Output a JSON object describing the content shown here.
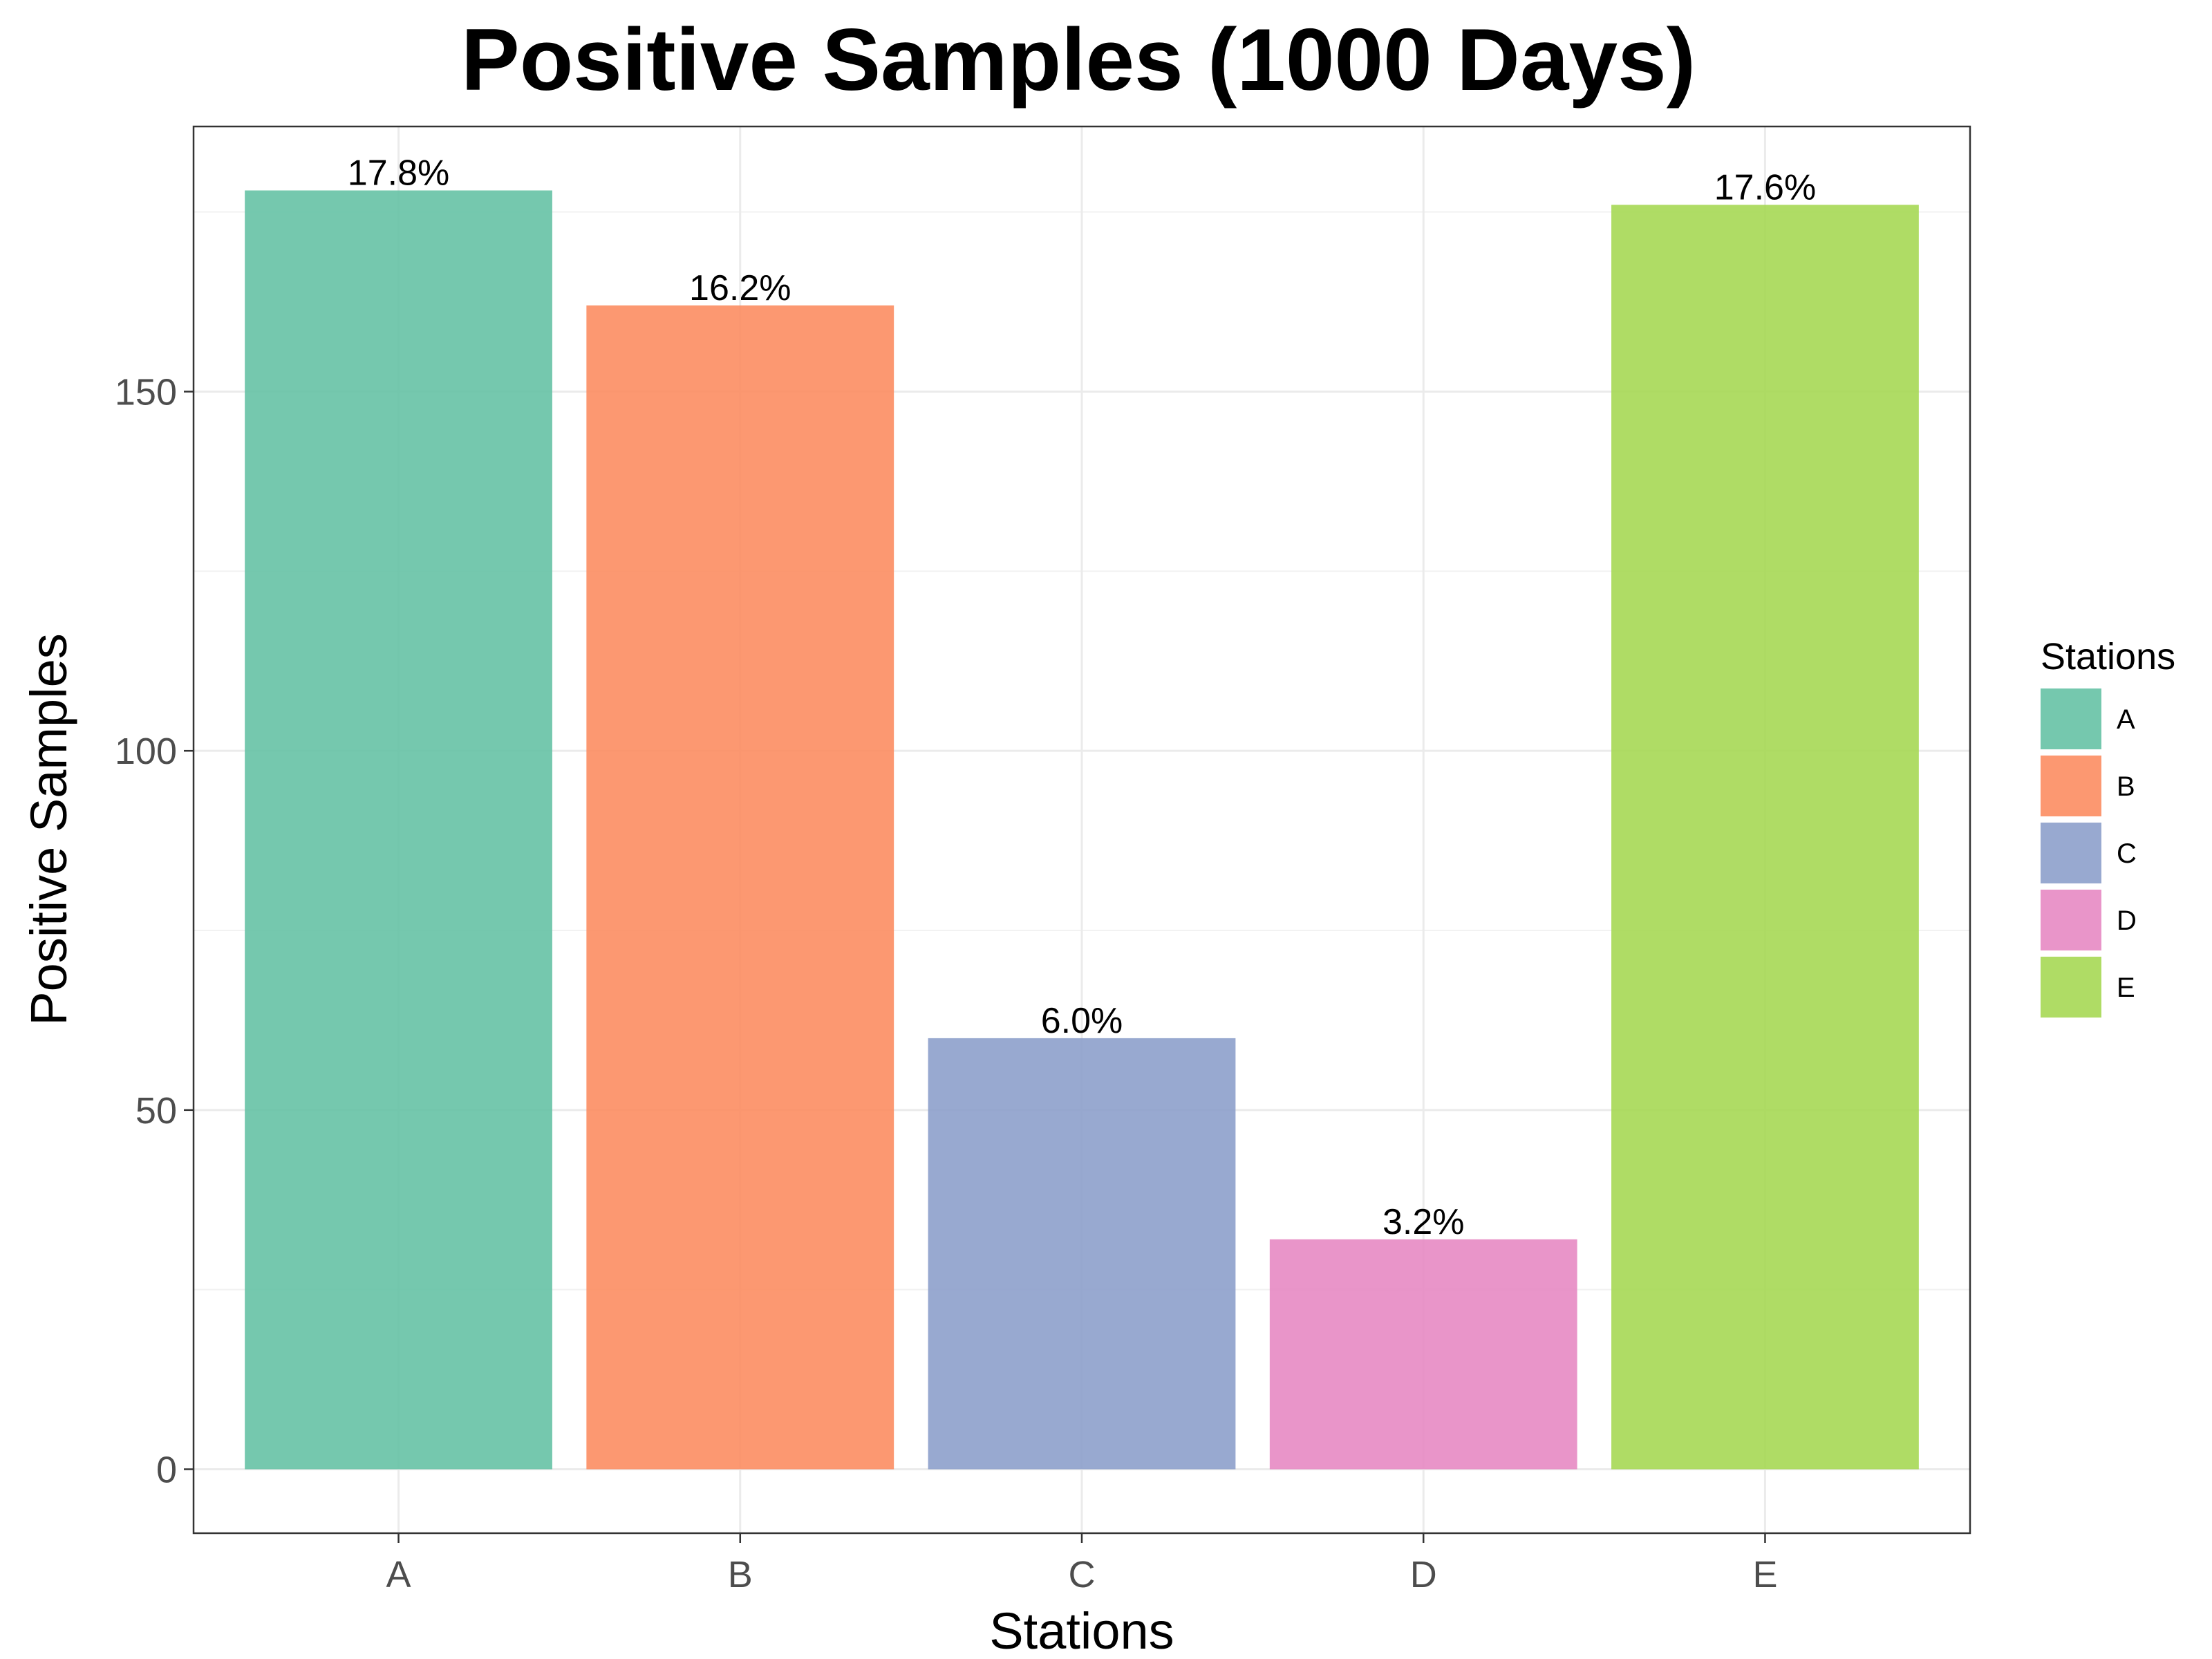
{
  "chart_data": {
    "type": "bar",
    "title": "Positive Samples (1000 Days)",
    "xlabel": "Stations",
    "ylabel": "Positive Samples",
    "categories": [
      "A",
      "B",
      "C",
      "D",
      "E"
    ],
    "values": [
      178,
      162,
      60,
      32,
      176
    ],
    "data_labels": [
      "17.8%",
      "16.2%",
      "6.0%",
      "3.2%",
      "17.6%"
    ],
    "colors": [
      "#66c2a5",
      "#fc8d62",
      "#8da0cb",
      "#e78ac3",
      "#a6d854"
    ],
    "bar_opacity": 0.9,
    "ylim": [
      -8.9,
      186.9
    ],
    "yticks": [
      0,
      50,
      100,
      150
    ],
    "ytick_labels": [
      "0",
      "50",
      "100",
      "150"
    ],
    "grid": true,
    "legend": {
      "title": "Stations",
      "entries": [
        "A",
        "B",
        "C",
        "D",
        "E"
      ],
      "placement": "right"
    }
  }
}
